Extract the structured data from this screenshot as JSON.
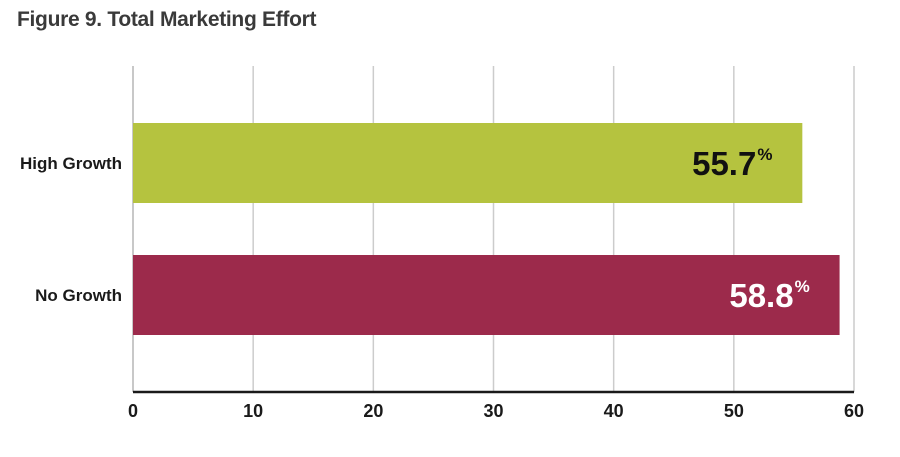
{
  "chart_data": {
    "type": "bar",
    "orientation": "horizontal",
    "title": "Figure 9. Total Marketing Effort",
    "categories": [
      "High Growth",
      "No Growth"
    ],
    "values": [
      55.7,
      58.8
    ],
    "value_labels": [
      "55.7",
      "58.8"
    ],
    "value_unit": "%",
    "colors": [
      "#b5c33f",
      "#9c2a4b"
    ],
    "label_colors": [
      "#111111",
      "#ffffff"
    ],
    "xlim": [
      0,
      60
    ],
    "xticks": [
      "0",
      "10",
      "20",
      "30",
      "40",
      "50",
      "60"
    ],
    "grid": true
  }
}
